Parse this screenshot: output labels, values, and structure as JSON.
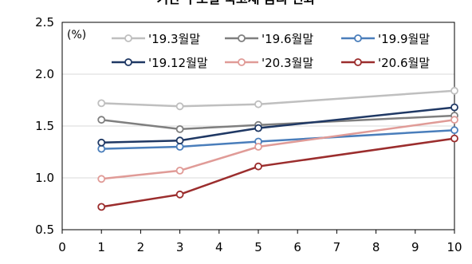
{
  "chart_data": {
    "type": "line",
    "title": "기간 구조별 국고채 금리 변화",
    "unit": "(%)",
    "x": [
      1,
      3,
      5,
      10
    ],
    "x_ticks": [
      0,
      1,
      2,
      3,
      4,
      5,
      6,
      7,
      8,
      9,
      10
    ],
    "y_ticks": [
      0.5,
      1.0,
      1.5,
      2.0,
      2.5
    ],
    "y_tick_labels": [
      "0.5",
      "1.0",
      "1.5",
      "2.0",
      "2.5"
    ],
    "xlim": [
      0,
      10
    ],
    "ylim": [
      0.5,
      2.5
    ],
    "grid": "horizontal",
    "legend_position": "top",
    "series": [
      {
        "name": "'19.3월말",
        "color": "#bfbfbf",
        "values": [
          1.72,
          1.69,
          1.71,
          1.84
        ]
      },
      {
        "name": "'19.6월말",
        "color": "#7f7f7f",
        "values": [
          1.56,
          1.47,
          1.51,
          1.6
        ]
      },
      {
        "name": "'19.9월말",
        "color": "#4a7ebb",
        "values": [
          1.28,
          1.3,
          1.35,
          1.46
        ]
      },
      {
        "name": "'19.12월말",
        "color": "#1f3864",
        "values": [
          1.34,
          1.36,
          1.48,
          1.68
        ]
      },
      {
        "name": "'20.3월말",
        "color": "#e09b97",
        "values": [
          0.99,
          1.07,
          1.3,
          1.56
        ]
      },
      {
        "name": "'20.6월말",
        "color": "#9b2d2d",
        "values": [
          0.72,
          0.84,
          1.11,
          1.38
        ]
      }
    ]
  }
}
